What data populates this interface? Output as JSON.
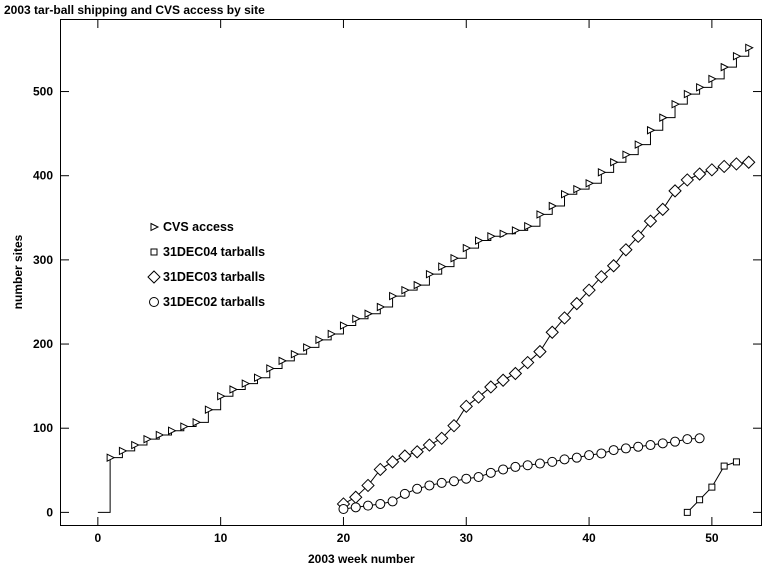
{
  "chart_data": {
    "type": "line",
    "title": "2003 tar-ball shipping and CVS access by site",
    "xlabel": "2003 week number",
    "ylabel": "number sites",
    "xlim": [
      -3,
      54
    ],
    "ylim": [
      -15,
      585
    ],
    "xticks": [
      0,
      10,
      20,
      30,
      40,
      50
    ],
    "yticks": [
      0,
      100,
      200,
      300,
      400,
      500
    ],
    "grid": false,
    "legend_position": "middle-left",
    "series": [
      {
        "name": "CVS access",
        "marker": "triangle-right",
        "step": true,
        "points": [
          [
            0,
            0
          ],
          [
            1,
            65
          ],
          [
            2,
            73
          ],
          [
            3,
            80
          ],
          [
            4,
            87
          ],
          [
            5,
            92
          ],
          [
            6,
            97
          ],
          [
            7,
            102
          ],
          [
            8,
            107
          ],
          [
            9,
            122
          ],
          [
            10,
            138
          ],
          [
            11,
            146
          ],
          [
            12,
            153
          ],
          [
            13,
            160
          ],
          [
            14,
            171
          ],
          [
            15,
            180
          ],
          [
            16,
            188
          ],
          [
            17,
            196
          ],
          [
            18,
            205
          ],
          [
            19,
            212
          ],
          [
            20,
            222
          ],
          [
            21,
            230
          ],
          [
            22,
            236
          ],
          [
            23,
            244
          ],
          [
            24,
            257
          ],
          [
            25,
            264
          ],
          [
            26,
            270
          ],
          [
            27,
            283
          ],
          [
            28,
            292
          ],
          [
            29,
            302
          ],
          [
            30,
            314
          ],
          [
            31,
            323
          ],
          [
            32,
            328
          ],
          [
            33,
            331
          ],
          [
            34,
            335
          ],
          [
            35,
            340
          ],
          [
            36,
            354
          ],
          [
            37,
            364
          ],
          [
            38,
            378
          ],
          [
            39,
            384
          ],
          [
            40,
            391
          ],
          [
            41,
            404
          ],
          [
            42,
            416
          ],
          [
            43,
            425
          ],
          [
            44,
            437
          ],
          [
            45,
            454
          ],
          [
            46,
            469
          ],
          [
            47,
            485
          ],
          [
            48,
            497
          ],
          [
            49,
            505
          ],
          [
            50,
            515
          ],
          [
            51,
            529
          ],
          [
            52,
            542
          ],
          [
            53,
            552
          ]
        ]
      },
      {
        "name": "31DEC04 tarballs",
        "marker": "square",
        "step": false,
        "points": [
          [
            48,
            0
          ],
          [
            49,
            15
          ],
          [
            50,
            30
          ],
          [
            51,
            55
          ],
          [
            52,
            60
          ]
        ]
      },
      {
        "name": "31DEC03 tarballs",
        "marker": "diamond",
        "step": false,
        "points": [
          [
            20,
            10
          ],
          [
            21,
            18
          ],
          [
            22,
            32
          ],
          [
            23,
            51
          ],
          [
            24,
            60
          ],
          [
            25,
            67
          ],
          [
            26,
            72
          ],
          [
            27,
            80
          ],
          [
            28,
            88
          ],
          [
            29,
            103
          ],
          [
            30,
            126
          ],
          [
            31,
            137
          ],
          [
            32,
            149
          ],
          [
            33,
            157
          ],
          [
            34,
            165
          ],
          [
            35,
            178
          ],
          [
            36,
            191
          ],
          [
            37,
            214
          ],
          [
            38,
            231
          ],
          [
            39,
            248
          ],
          [
            40,
            264
          ],
          [
            41,
            280
          ],
          [
            42,
            293
          ],
          [
            43,
            312
          ],
          [
            44,
            328
          ],
          [
            45,
            346
          ],
          [
            46,
            360
          ],
          [
            47,
            382
          ],
          [
            48,
            395
          ],
          [
            49,
            402
          ],
          [
            50,
            407
          ],
          [
            51,
            411
          ],
          [
            52,
            414
          ],
          [
            53,
            416
          ]
        ]
      },
      {
        "name": "31DEC02 tarballs",
        "marker": "circle",
        "step": false,
        "points": [
          [
            20,
            4
          ],
          [
            21,
            6
          ],
          [
            22,
            8
          ],
          [
            23,
            10
          ],
          [
            24,
            13
          ],
          [
            25,
            22
          ],
          [
            26,
            28
          ],
          [
            27,
            32
          ],
          [
            28,
            35
          ],
          [
            29,
            37
          ],
          [
            30,
            40
          ],
          [
            31,
            42
          ],
          [
            32,
            47
          ],
          [
            33,
            51
          ],
          [
            34,
            54
          ],
          [
            35,
            56
          ],
          [
            36,
            58
          ],
          [
            37,
            60
          ],
          [
            38,
            63
          ],
          [
            39,
            65
          ],
          [
            40,
            68
          ],
          [
            41,
            70
          ],
          [
            42,
            74
          ],
          [
            43,
            76
          ],
          [
            44,
            78
          ],
          [
            45,
            80
          ],
          [
            46,
            82
          ],
          [
            47,
            84
          ],
          [
            48,
            87
          ],
          [
            49,
            88
          ]
        ]
      }
    ]
  }
}
